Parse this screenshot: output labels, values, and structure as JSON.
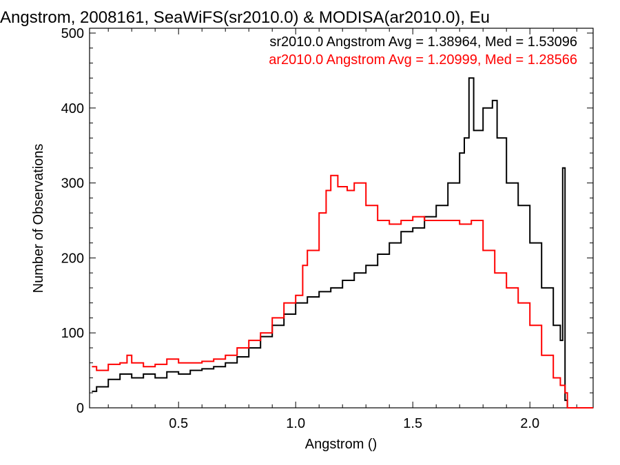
{
  "chart_data": {
    "type": "line",
    "title": "Angstrom, 2008161, SeaWiFS(sr2010.0) & MODISA(ar2010.0), Eu",
    "xlabel": "Angstrom ()",
    "ylabel": "Number of Observations",
    "xlim": [
      0.12,
      2.27
    ],
    "ylim": [
      0,
      500
    ],
    "xticks": [
      0.5,
      1.0,
      1.5,
      2.0
    ],
    "xtick_labels": [
      "0.5",
      "1.0",
      "1.5",
      "2.0"
    ],
    "yticks": [
      0,
      100,
      200,
      300,
      400,
      500
    ],
    "ytick_labels": [
      "0",
      "100",
      "200",
      "300",
      "400",
      "500"
    ],
    "grid": false,
    "legend_position": "top-right",
    "series": [
      {
        "name": "sr2010.0 Angstrom Avg = 1.38964, Med = 1.53096",
        "color": "#000000",
        "x": [
          0.13,
          0.15,
          0.2,
          0.25,
          0.3,
          0.35,
          0.4,
          0.45,
          0.5,
          0.55,
          0.6,
          0.65,
          0.7,
          0.75,
          0.8,
          0.85,
          0.9,
          0.95,
          1.0,
          1.05,
          1.1,
          1.15,
          1.2,
          1.25,
          1.3,
          1.35,
          1.4,
          1.45,
          1.5,
          1.55,
          1.6,
          1.65,
          1.7,
          1.72,
          1.74,
          1.76,
          1.8,
          1.84,
          1.86,
          1.9,
          1.95,
          2.0,
          2.05,
          2.1,
          2.13,
          2.14,
          2.15,
          2.16,
          2.17
        ],
        "y": [
          22,
          28,
          38,
          45,
          40,
          45,
          40,
          48,
          45,
          50,
          52,
          55,
          60,
          68,
          80,
          95,
          110,
          125,
          140,
          148,
          155,
          160,
          170,
          180,
          190,
          205,
          220,
          235,
          240,
          255,
          270,
          300,
          340,
          360,
          440,
          370,
          400,
          410,
          360,
          300,
          270,
          220,
          160,
          110,
          90,
          320,
          10,
          0,
          0
        ]
      },
      {
        "name": "ar2010.0 Angstrom Avg = 1.20999, Med = 1.28566",
        "color": "#ff0000",
        "x": [
          0.13,
          0.15,
          0.2,
          0.25,
          0.28,
          0.3,
          0.35,
          0.4,
          0.45,
          0.5,
          0.55,
          0.6,
          0.65,
          0.7,
          0.75,
          0.8,
          0.85,
          0.9,
          0.95,
          1.0,
          1.03,
          1.05,
          1.1,
          1.13,
          1.15,
          1.18,
          1.22,
          1.25,
          1.3,
          1.35,
          1.4,
          1.45,
          1.5,
          1.55,
          1.6,
          1.65,
          1.7,
          1.75,
          1.8,
          1.85,
          1.9,
          1.95,
          2.0,
          2.05,
          2.1,
          2.13,
          2.15,
          2.16,
          2.27
        ],
        "y": [
          55,
          50,
          58,
          60,
          70,
          60,
          55,
          58,
          65,
          60,
          60,
          62,
          65,
          70,
          80,
          90,
          100,
          120,
          140,
          150,
          190,
          210,
          260,
          290,
          310,
          295,
          290,
          300,
          270,
          250,
          245,
          250,
          255,
          250,
          250,
          250,
          245,
          250,
          210,
          180,
          160,
          140,
          110,
          70,
          40,
          30,
          20,
          0,
          0
        ]
      }
    ]
  }
}
